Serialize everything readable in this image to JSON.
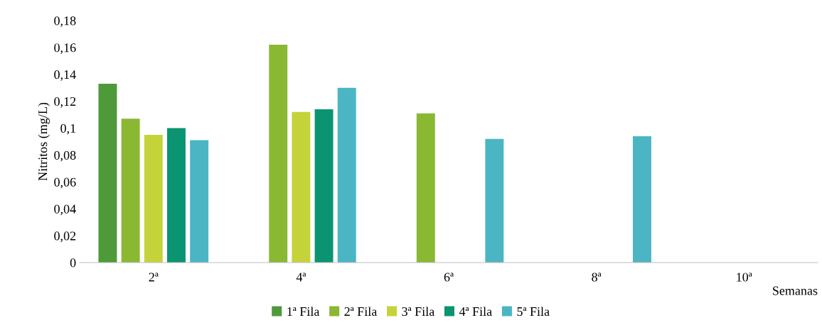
{
  "chart_data": {
    "type": "bar",
    "ylabel": "Nitritos (mg/L)",
    "xlabel": "Semanas",
    "categories": [
      "2ª",
      "4ª",
      "6ª",
      "8ª",
      "10ª"
    ],
    "series": [
      {
        "name": "1ª Fila",
        "color": "#4e9a3a",
        "values": [
          0.133,
          null,
          null,
          null,
          null
        ]
      },
      {
        "name": "2ª Fila",
        "color": "#8ab833",
        "values": [
          0.107,
          0.162,
          0.111,
          null,
          null
        ]
      },
      {
        "name": "3ª Fila",
        "color": "#c5d33b",
        "values": [
          0.095,
          0.112,
          null,
          null,
          null
        ]
      },
      {
        "name": "4ª Fila",
        "color": "#0b9471",
        "values": [
          0.1,
          0.114,
          null,
          null,
          null
        ]
      },
      {
        "name": "5ª Fila",
        "color": "#4bb5c4",
        "values": [
          0.091,
          0.13,
          0.092,
          0.094,
          null
        ]
      }
    ],
    "ylim": [
      0,
      0.18
    ],
    "yticks": [
      0,
      {
        "value": 0.02,
        "label": "0,02"
      },
      {
        "value": 0.04,
        "label": "0,04"
      },
      {
        "value": 0.06,
        "label": "0,06"
      },
      {
        "value": 0.08,
        "label": "0,08"
      },
      {
        "value": 0.1,
        "label": "0,1"
      },
      {
        "value": 0.12,
        "label": "0,12"
      },
      {
        "value": 0.14,
        "label": "0,14"
      },
      {
        "value": 0.16,
        "label": "0,16"
      },
      {
        "value": 0.18,
        "label": "0,18"
      }
    ],
    "grid": false,
    "legend": "bottom"
  }
}
